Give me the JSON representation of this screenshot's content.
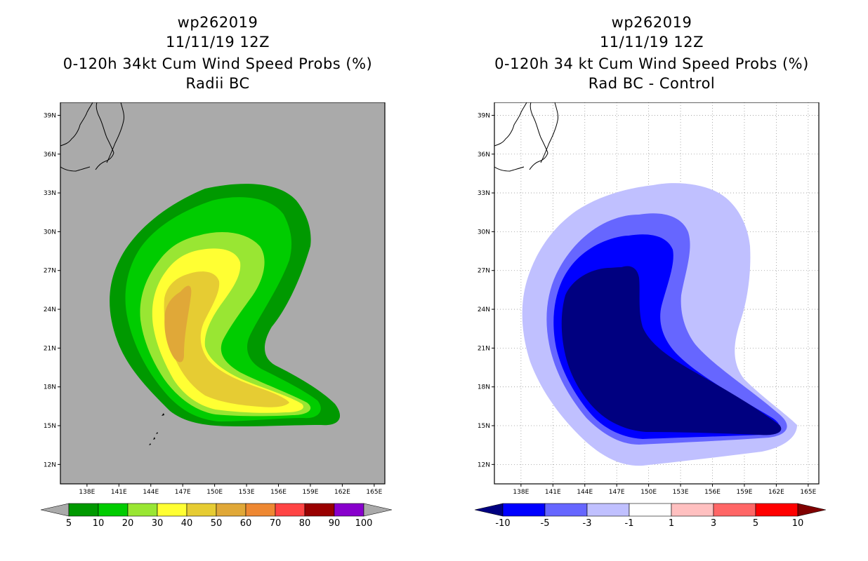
{
  "panels": [
    {
      "title_lines": [
        "wp262019",
        "11/11/19 12Z",
        "0-120h 34kt Cum Wind Speed Probs (%)",
        "Radii BC"
      ],
      "background": "#aaaaaa",
      "gridlines": false
    },
    {
      "title_lines": [
        "wp262019",
        "11/11/19 12Z",
        "0-120h 34 kt Cum Wind Speed Probs (%)",
        "Rad BC - Control"
      ],
      "background": "#ffffff",
      "gridlines": true
    }
  ],
  "chart_data": [
    {
      "type": "filled-contour-map",
      "title": "0-120h 34kt Cum Wind Speed Probs (%)",
      "subtitle": "Radii BC",
      "storm": "wp262019",
      "init_time": "11/11/19 12Z",
      "x_ticks": [
        "138E",
        "141E",
        "144E",
        "147E",
        "150E",
        "153E",
        "156E",
        "159E",
        "162E",
        "165E"
      ],
      "y_ticks": [
        "12N",
        "15N",
        "18N",
        "21N",
        "24N",
        "27N",
        "30N",
        "33N",
        "36N",
        "39N"
      ],
      "xlim": [
        135.5,
        166
      ],
      "ylim": [
        10.5,
        40
      ],
      "levels": [
        5,
        10,
        20,
        30,
        40,
        50,
        60,
        70,
        80,
        90,
        100
      ],
      "level_labels": [
        "5",
        "10",
        "20",
        "30",
        "40",
        "50",
        "60",
        "70",
        "80",
        "90",
        "100"
      ],
      "colors": [
        "#009900",
        "#00cc00",
        "#99e633",
        "#ffff33",
        "#e6cc33",
        "#e0a838",
        "#ee8833",
        "#ff4444",
        "#990000",
        "#8800cc"
      ],
      "under_color": "#aaaaaa",
      "over_color": "#aaaaaa",
      "max_level_reached": 50
    },
    {
      "type": "filled-contour-map",
      "title": "0-120h 34 kt Cum Wind Speed Probs (%)",
      "subtitle": "Rad BC - Control",
      "storm": "wp262019",
      "init_time": "11/11/19 12Z",
      "x_ticks": [
        "138E",
        "141E",
        "144E",
        "147E",
        "150E",
        "153E",
        "156E",
        "159E",
        "162E",
        "165E"
      ],
      "y_ticks": [
        "12N",
        "15N",
        "18N",
        "21N",
        "24N",
        "27N",
        "30N",
        "33N",
        "36N",
        "39N"
      ],
      "xlim": [
        135.5,
        166
      ],
      "ylim": [
        10.5,
        40
      ],
      "levels": [
        -10,
        -5,
        -3,
        -1,
        1,
        3,
        5,
        10
      ],
      "level_labels": [
        "-10",
        "-5",
        "-3",
        "-1",
        "1",
        "3",
        "5",
        "10"
      ],
      "colors": [
        "#0000ff",
        "#6666ff",
        "#c0c0ff",
        "#ffffff",
        "#ffc0c0",
        "#ff6666",
        "#ff0000"
      ],
      "under_color": "#000080",
      "over_color": "#800000",
      "min_level_reached": -10
    }
  ]
}
